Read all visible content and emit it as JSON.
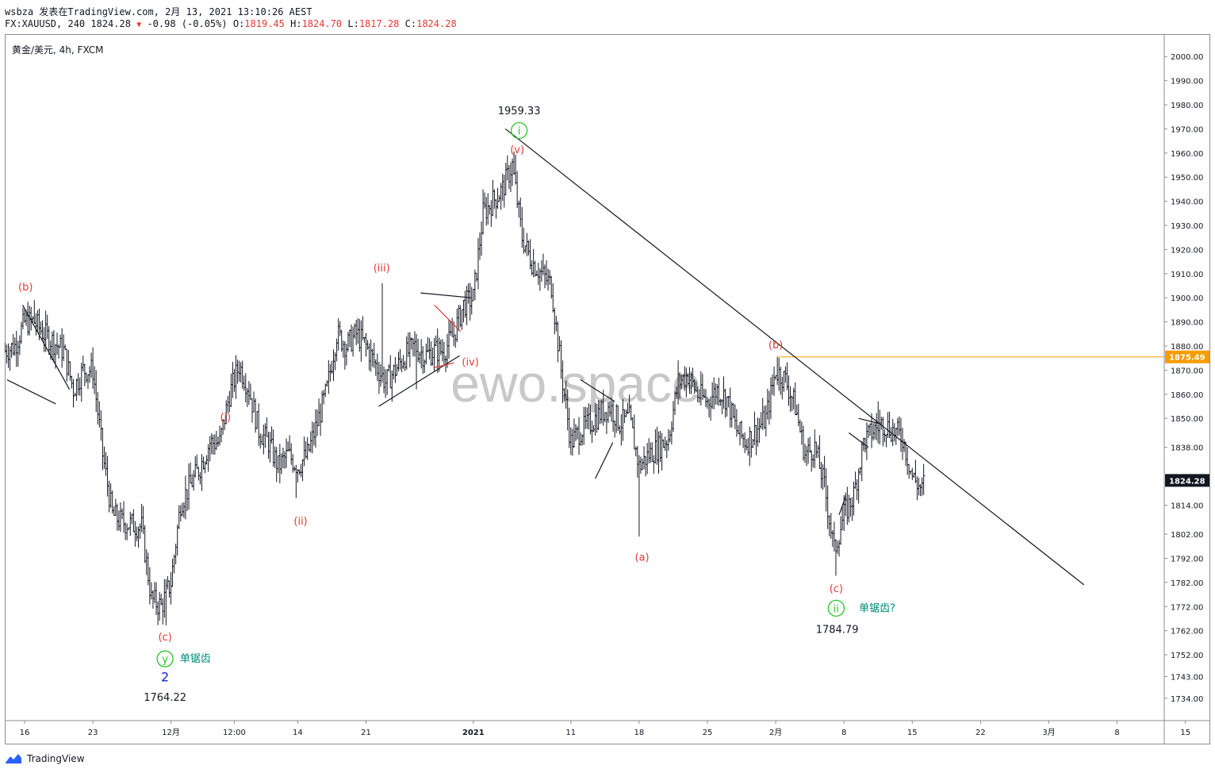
{
  "header": {
    "line1": "wsbza 发表在TradingView.com, 2月 13, 2021 13:10:26 AEST",
    "symbol": "FX:XAUUSD, 240 1824.28",
    "change": "-0.98 (-0.05%)",
    "o_label": "O:",
    "o_value": "1819.45",
    "h_label": "H:",
    "h_value": "1824.70",
    "l_label": "L:",
    "l_value": "1817.28",
    "c_label": "C:",
    "c_value": "1824.28"
  },
  "footer": {
    "brand": "TradingView"
  },
  "colors": {
    "bar": "#131722",
    "red": "#e53935",
    "green": "#26c626",
    "teal": "#00897b",
    "blue": "#0d22d6",
    "orange": "#f59c00",
    "grid": "#e0e3eb",
    "watermark": "#c8c8c8"
  },
  "chart_data": {
    "type": "ohlc",
    "title": "黄金/美元, 4h, FXCM",
    "watermark": "ewo.space",
    "ylim": [
      1728,
      2006
    ],
    "y_ticks": [
      2000,
      1990,
      1980,
      1970,
      1960,
      1950,
      1940,
      1930,
      1920,
      1910,
      1900,
      1890,
      1880,
      1870,
      1860,
      1850,
      1838,
      1814,
      1802,
      1792,
      1782,
      1772,
      1762,
      1752,
      1743,
      1734
    ],
    "y_tick_labels": [
      "2000.00",
      "1990.00",
      "1980.00",
      "1970.00",
      "1960.00",
      "1950.00",
      "1940.00",
      "1930.00",
      "1920.00",
      "1910.00",
      "1900.00",
      "1890.00",
      "1880.00",
      "1870.00",
      "1860.00",
      "1850.00",
      "1838.00",
      "1814.00",
      "1802.00",
      "1792.00",
      "1782.00",
      "1772.00",
      "1762.00",
      "1752.00",
      "1743.00",
      "1734.00"
    ],
    "x_ticks": [
      {
        "day": 0,
        "label": "16",
        "bold": false
      },
      {
        "day": 7,
        "label": "23",
        "bold": false
      },
      {
        "day": 15,
        "label": "12月",
        "bold": false
      },
      {
        "day": 21.5,
        "label": "12:00",
        "bold": false
      },
      {
        "day": 28,
        "label": "14",
        "bold": false
      },
      {
        "day": 35,
        "label": "21",
        "bold": false
      },
      {
        "day": 46,
        "label": "2021",
        "bold": true
      },
      {
        "day": 56,
        "label": "11",
        "bold": false
      },
      {
        "day": 63,
        "label": "18",
        "bold": false
      },
      {
        "day": 70,
        "label": "25",
        "bold": false
      },
      {
        "day": 77,
        "label": "2月",
        "bold": false
      },
      {
        "day": 84,
        "label": "8",
        "bold": false
      },
      {
        "day": 91,
        "label": "15",
        "bold": false
      },
      {
        "day": 98,
        "label": "22",
        "bold": false
      },
      {
        "day": 105,
        "label": "3月",
        "bold": false
      },
      {
        "day": 112,
        "label": "8",
        "bold": false
      },
      {
        "day": 119,
        "label": "15",
        "bold": false
      }
    ],
    "price_path": [
      [
        -2,
        1878
      ],
      [
        -1,
        1880
      ],
      [
        0,
        1890
      ],
      [
        1,
        1890
      ],
      [
        2,
        1885
      ],
      [
        4,
        1878
      ],
      [
        5,
        1862
      ],
      [
        6,
        1870
      ],
      [
        7,
        1870
      ],
      [
        8,
        1835
      ],
      [
        9,
        1810
      ],
      [
        10,
        1807
      ],
      [
        12,
        1805
      ],
      [
        13,
        1775
      ],
      [
        14,
        1772
      ],
      [
        15,
        1782
      ],
      [
        16,
        1815
      ],
      [
        18,
        1830
      ],
      [
        19,
        1840
      ],
      [
        20,
        1840
      ],
      [
        21,
        1860
      ],
      [
        22,
        1872
      ],
      [
        23,
        1862
      ],
      [
        24,
        1845
      ],
      [
        25,
        1840
      ],
      [
        26,
        1830
      ],
      [
        27,
        1835
      ],
      [
        28,
        1830
      ],
      [
        29,
        1835
      ],
      [
        30,
        1848
      ],
      [
        31,
        1862
      ],
      [
        32,
        1885
      ],
      [
        33,
        1880
      ],
      [
        34,
        1885
      ],
      [
        35,
        1880
      ],
      [
        36,
        1872
      ],
      [
        37,
        1865
      ],
      [
        38,
        1870
      ],
      [
        39,
        1876
      ],
      [
        40,
        1880
      ],
      [
        41,
        1876
      ],
      [
        42,
        1878
      ],
      [
        43,
        1878
      ],
      [
        44,
        1885
      ],
      [
        45,
        1897
      ],
      [
        46,
        1900
      ],
      [
        47,
        1935
      ],
      [
        48,
        1940
      ],
      [
        49,
        1945
      ],
      [
        50,
        1955
      ],
      [
        51,
        1925
      ],
      [
        52,
        1915
      ],
      [
        53,
        1910
      ],
      [
        54,
        1905
      ],
      [
        55,
        1870
      ],
      [
        56,
        1840
      ],
      [
        57,
        1845
      ],
      [
        58,
        1848
      ],
      [
        59,
        1852
      ],
      [
        60,
        1855
      ],
      [
        61,
        1848
      ],
      [
        62,
        1850
      ],
      [
        63,
        1830
      ],
      [
        64,
        1835
      ],
      [
        65,
        1838
      ],
      [
        66,
        1842
      ],
      [
        67,
        1865
      ],
      [
        68,
        1868
      ],
      [
        69,
        1860
      ],
      [
        70,
        1857
      ],
      [
        71,
        1862
      ],
      [
        72,
        1858
      ],
      [
        73,
        1845
      ],
      [
        74,
        1840
      ],
      [
        75,
        1845
      ],
      [
        76,
        1850
      ],
      [
        77,
        1870
      ],
      [
        78,
        1866
      ],
      [
        79,
        1855
      ],
      [
        80,
        1835
      ],
      [
        81,
        1838
      ],
      [
        82,
        1822
      ],
      [
        83,
        1795
      ],
      [
        84,
        1810
      ],
      [
        85,
        1818
      ],
      [
        86,
        1840
      ],
      [
        87,
        1845
      ],
      [
        88,
        1848
      ],
      [
        89,
        1845
      ],
      [
        90,
        1842
      ],
      [
        91,
        1826
      ],
      [
        92,
        1820
      ],
      [
        92.2,
        1824.28
      ]
    ],
    "extremes": [
      {
        "day": 1,
        "price": 1899
      },
      {
        "day": 14.5,
        "price": 1764.22
      },
      {
        "day": 27.8,
        "price": 1817
      },
      {
        "day": 36.6,
        "price": 1906
      },
      {
        "day": 40.2,
        "price": 1862
      },
      {
        "day": 50.4,
        "price": 1959.33
      },
      {
        "day": 63,
        "price": 1801
      },
      {
        "day": 77.2,
        "price": 1875.49
      },
      {
        "day": 83.2,
        "price": 1784.79
      },
      {
        "day": 87.5,
        "price": 1857
      }
    ],
    "last_price": 1824.28,
    "horizontal_line": 1875.49,
    "trendlines": [
      {
        "x1": 49.3,
        "y1": 1970,
        "x2": 108.6,
        "y2": 1781,
        "color": "#131722"
      },
      {
        "x1": -0.2,
        "y1": 1897,
        "x2": 4.6,
        "y2": 1862,
        "color": "#131722"
      },
      {
        "x1": -1.8,
        "y1": 1866,
        "x2": 3.2,
        "y2": 1856,
        "color": "#131722"
      },
      {
        "x1": 36.3,
        "y1": 1855,
        "x2": 44.6,
        "y2": 1876,
        "color": "#131722"
      },
      {
        "x1": 40.6,
        "y1": 1902,
        "x2": 45.8,
        "y2": 1900,
        "color": "#131722"
      },
      {
        "x1": 42,
        "y1": 1897,
        "x2": 44.7,
        "y2": 1886,
        "color": "#e53935"
      },
      {
        "x1": 41.9,
        "y1": 1871,
        "x2": 44,
        "y2": 1873,
        "color": "#e53935"
      },
      {
        "x1": 57,
        "y1": 1866,
        "x2": 60.5,
        "y2": 1857,
        "color": "#131722"
      },
      {
        "x1": 58.5,
        "y1": 1825,
        "x2": 60.3,
        "y2": 1840,
        "color": "#131722"
      },
      {
        "x1": 84.5,
        "y1": 1844,
        "x2": 86.5,
        "y2": 1838,
        "color": "#131722"
      },
      {
        "x1": 85.5,
        "y1": 1850,
        "x2": 87.5,
        "y2": 1848,
        "color": "#131722"
      },
      {
        "x1": 83.5,
        "y1": 1810,
        "x2": 84.2,
        "y2": 1818,
        "color": "#131722"
      }
    ],
    "annotations": [
      {
        "text": "(b)",
        "day": 0.1,
        "price": 1903,
        "color": "#e53935",
        "kind": "text"
      },
      {
        "text": "(c)",
        "day": 14.4,
        "price": 1758,
        "color": "#e53935",
        "kind": "text"
      },
      {
        "text": "y",
        "day": 14.4,
        "price": 1749,
        "color": "#26c626",
        "kind": "circle"
      },
      {
        "text": "单锯齿",
        "day": 17.5,
        "price": 1749,
        "color": "#00897b",
        "kind": "text"
      },
      {
        "text": "2",
        "day": 14.4,
        "price": 1741,
        "color": "#0d22d6",
        "kind": "wave"
      },
      {
        "text": "1764.22",
        "day": 14.4,
        "price": 1733,
        "color": "#131722",
        "kind": "text"
      },
      {
        "text": "(i)",
        "day": 20.6,
        "price": 1849,
        "color": "#e53935",
        "kind": "text"
      },
      {
        "text": "(ii)",
        "day": 28.3,
        "price": 1806,
        "color": "#e53935",
        "kind": "text"
      },
      {
        "text": "(iii)",
        "day": 36.6,
        "price": 1911,
        "color": "#e53935",
        "kind": "text"
      },
      {
        "text": "(iv)",
        "day": 45.7,
        "price": 1872,
        "color": "#e53935",
        "kind": "text"
      },
      {
        "text": "1959.33",
        "day": 50.7,
        "price": 1976,
        "color": "#131722",
        "kind": "text"
      },
      {
        "text": "i",
        "day": 50.7,
        "price": 1968,
        "color": "#26c626",
        "kind": "circle"
      },
      {
        "text": "(v)",
        "day": 50.5,
        "price": 1960,
        "color": "#e53935",
        "kind": "text"
      },
      {
        "text": "(a)",
        "day": 63.3,
        "price": 1791,
        "color": "#e53935",
        "kind": "text"
      },
      {
        "text": "(b)",
        "day": 77,
        "price": 1879,
        "color": "#e53935",
        "kind": "text"
      },
      {
        "text": "(c)",
        "day": 83.2,
        "price": 1778,
        "color": "#e53935",
        "kind": "text"
      },
      {
        "text": "ii",
        "day": 83.2,
        "price": 1770,
        "color": "#26c626",
        "kind": "circle"
      },
      {
        "text": "单锯齿?",
        "day": 87.4,
        "price": 1770,
        "color": "#00897b",
        "kind": "text"
      },
      {
        "text": "1784.79",
        "day": 83.3,
        "price": 1761,
        "color": "#131722",
        "kind": "text"
      }
    ]
  }
}
